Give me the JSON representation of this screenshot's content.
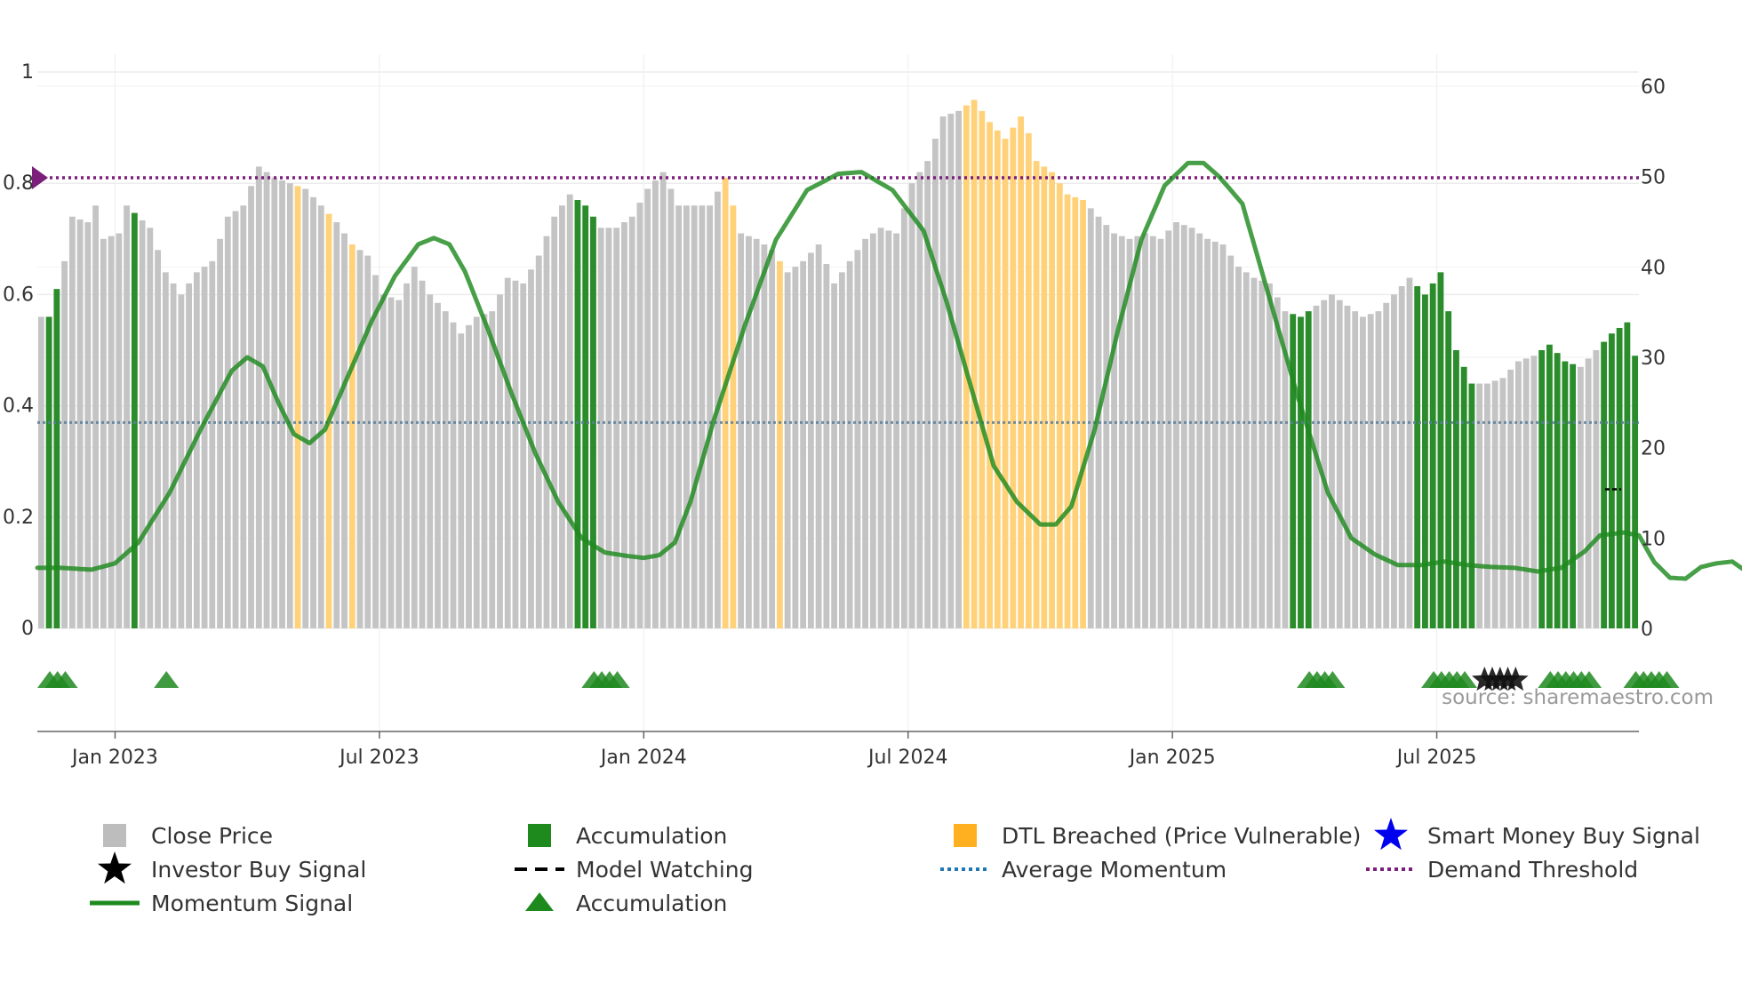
{
  "chart_data": {
    "type": "bar",
    "title": "",
    "source": "source: sharemaestro.com",
    "left_axis": {
      "ylim": [
        0,
        1
      ],
      "ticks": [
        "0",
        "0.2",
        "0.4",
        "0.6",
        "0.8",
        "1"
      ],
      "tick_values": [
        0,
        0.2,
        0.4,
        0.6,
        0.8,
        1.0
      ]
    },
    "right_axis": {
      "ylim": [
        0,
        60
      ],
      "ticks": [
        "0",
        "10",
        "20",
        "30",
        "40",
        "50",
        "60"
      ],
      "tick_values": [
        0,
        10,
        20,
        30,
        40,
        50,
        60
      ]
    },
    "x_ticks": [
      "Jan 2023",
      "Jul 2023",
      "Jan 2024",
      "Jul 2024",
      "Jan 2025",
      "Jul 2025"
    ],
    "x_tick_weeks": [
      10,
      44,
      78,
      112,
      146,
      180
    ],
    "bar_weeks": 206,
    "bar_keyframes": [
      [
        0,
        0.56
      ],
      [
        1,
        0.56
      ],
      [
        2,
        0.61
      ],
      [
        3,
        0.66
      ],
      [
        4,
        0.74
      ],
      [
        6,
        0.73
      ],
      [
        7,
        0.76
      ],
      [
        8,
        0.7
      ],
      [
        10,
        0.71
      ],
      [
        11,
        0.76
      ],
      [
        14,
        0.72
      ],
      [
        16,
        0.64
      ],
      [
        18,
        0.6
      ],
      [
        20,
        0.64
      ],
      [
        22,
        0.66
      ],
      [
        24,
        0.74
      ],
      [
        26,
        0.76
      ],
      [
        28,
        0.83
      ],
      [
        30,
        0.81
      ],
      [
        32,
        0.8
      ],
      [
        34,
        0.79
      ],
      [
        36,
        0.76
      ],
      [
        38,
        0.73
      ],
      [
        40,
        0.69
      ],
      [
        42,
        0.67
      ],
      [
        44,
        0.6
      ],
      [
        46,
        0.59
      ],
      [
        48,
        0.65
      ],
      [
        50,
        0.6
      ],
      [
        52,
        0.57
      ],
      [
        54,
        0.53
      ],
      [
        56,
        0.56
      ],
      [
        58,
        0.57
      ],
      [
        60,
        0.63
      ],
      [
        62,
        0.62
      ],
      [
        64,
        0.67
      ],
      [
        66,
        0.74
      ],
      [
        68,
        0.78
      ],
      [
        70,
        0.76
      ],
      [
        72,
        0.72
      ],
      [
        74,
        0.72
      ],
      [
        76,
        0.74
      ],
      [
        78,
        0.79
      ],
      [
        80,
        0.82
      ],
      [
        82,
        0.76
      ],
      [
        84,
        0.76
      ],
      [
        86,
        0.76
      ],
      [
        88,
        0.81
      ],
      [
        90,
        0.71
      ],
      [
        92,
        0.7
      ],
      [
        94,
        0.68
      ],
      [
        96,
        0.64
      ],
      [
        98,
        0.66
      ],
      [
        100,
        0.69
      ],
      [
        102,
        0.62
      ],
      [
        104,
        0.66
      ],
      [
        106,
        0.7
      ],
      [
        108,
        0.72
      ],
      [
        110,
        0.71
      ],
      [
        112,
        0.8
      ],
      [
        114,
        0.84
      ],
      [
        116,
        0.92
      ],
      [
        118,
        0.93
      ],
      [
        120,
        0.95
      ],
      [
        122,
        0.91
      ],
      [
        124,
        0.88
      ],
      [
        126,
        0.92
      ],
      [
        127,
        0.89
      ],
      [
        128,
        0.84
      ],
      [
        130,
        0.82
      ],
      [
        132,
        0.78
      ],
      [
        134,
        0.77
      ],
      [
        136,
        0.74
      ],
      [
        138,
        0.71
      ],
      [
        140,
        0.7
      ],
      [
        142,
        0.71
      ],
      [
        144,
        0.7
      ],
      [
        146,
        0.73
      ],
      [
        148,
        0.72
      ],
      [
        150,
        0.7
      ],
      [
        152,
        0.69
      ],
      [
        154,
        0.65
      ],
      [
        156,
        0.63
      ],
      [
        158,
        0.62
      ],
      [
        160,
        0.57
      ],
      [
        162,
        0.56
      ],
      [
        164,
        0.58
      ],
      [
        166,
        0.6
      ],
      [
        168,
        0.58
      ],
      [
        170,
        0.56
      ],
      [
        172,
        0.57
      ],
      [
        174,
        0.6
      ],
      [
        176,
        0.63
      ],
      [
        178,
        0.6
      ],
      [
        180,
        0.64
      ],
      [
        182,
        0.5
      ],
      [
        184,
        0.44
      ],
      [
        186,
        0.44
      ],
      [
        188,
        0.45
      ],
      [
        190,
        0.48
      ],
      [
        192,
        0.49
      ],
      [
        194,
        0.51
      ],
      [
        196,
        0.48
      ],
      [
        198,
        0.47
      ],
      [
        200,
        0.5
      ],
      [
        202,
        0.53
      ],
      [
        204,
        0.55
      ],
      [
        205,
        0.49
      ]
    ],
    "accumulation_bar_ranges": [
      [
        1,
        2
      ],
      [
        12,
        12
      ],
      [
        69,
        71
      ],
      [
        161,
        163
      ],
      [
        177,
        184
      ],
      [
        193,
        197
      ],
      [
        201,
        205
      ]
    ],
    "dtl_breached_bar_ranges": [
      [
        33,
        33
      ],
      [
        37,
        37
      ],
      [
        40,
        40
      ],
      [
        88,
        89
      ],
      [
        95,
        95
      ],
      [
        119,
        134
      ]
    ],
    "momentum_signal": {
      "axis": "right",
      "keyframes": [
        [
          0,
          6.7
        ],
        [
          3,
          6.7
        ],
        [
          7,
          6.5
        ],
        [
          10,
          7.2
        ],
        [
          13,
          9.5
        ],
        [
          17,
          15
        ],
        [
          21,
          22
        ],
        [
          25,
          28.5
        ],
        [
          27,
          30
        ],
        [
          29,
          29
        ],
        [
          31,
          25
        ],
        [
          33,
          21.5
        ],
        [
          35,
          20.5
        ],
        [
          37,
          22
        ],
        [
          40,
          28
        ],
        [
          43,
          34
        ],
        [
          46,
          39
        ],
        [
          49,
          42.5
        ],
        [
          51,
          43.2
        ],
        [
          53,
          42.5
        ],
        [
          55,
          39.5
        ],
        [
          58,
          33
        ],
        [
          61,
          26
        ],
        [
          64,
          19.5
        ],
        [
          67,
          14
        ],
        [
          70,
          10
        ],
        [
          73,
          8.4
        ],
        [
          76,
          8.0
        ],
        [
          78,
          7.8
        ],
        [
          80,
          8.1
        ],
        [
          82,
          9.5
        ],
        [
          84,
          14
        ],
        [
          87,
          23
        ],
        [
          91,
          33.5
        ],
        [
          95,
          43
        ],
        [
          99,
          48.5
        ],
        [
          103,
          50.3
        ],
        [
          106,
          50.5
        ],
        [
          110,
          48.5
        ],
        [
          114,
          44
        ],
        [
          117,
          36
        ],
        [
          120,
          27
        ],
        [
          123,
          18
        ],
        [
          126,
          14
        ],
        [
          129,
          11.5
        ],
        [
          131,
          11.5
        ],
        [
          133,
          13.5
        ],
        [
          136,
          22
        ],
        [
          139,
          33
        ],
        [
          142,
          43
        ],
        [
          145,
          49
        ],
        [
          148,
          51.5
        ],
        [
          150,
          51.5
        ],
        [
          152,
          50
        ],
        [
          155,
          47
        ],
        [
          158,
          38
        ],
        [
          162,
          26
        ],
        [
          166,
          15
        ],
        [
          169,
          10
        ],
        [
          172,
          8.2
        ],
        [
          175,
          7.0
        ],
        [
          178,
          7.0
        ],
        [
          181,
          7.4
        ],
        [
          184,
          7.0
        ],
        [
          187,
          6.8
        ],
        [
          190,
          6.7
        ],
        [
          193,
          6.3
        ],
        [
          196,
          6.7
        ],
        [
          199,
          8.5
        ],
        [
          201,
          10.3
        ],
        [
          204,
          10.6
        ],
        [
          206,
          10.3
        ],
        [
          208,
          7.3
        ],
        [
          210,
          5.6
        ],
        [
          212,
          5.5
        ],
        [
          214,
          6.8
        ],
        [
          216,
          7.2
        ],
        [
          218,
          7.4
        ],
        [
          220,
          6.2
        ],
        [
          222,
          6.4
        ],
        [
          224,
          8.2
        ],
        [
          227,
          9.2
        ]
      ]
    },
    "demand_threshold": {
      "axis": "left",
      "value": 0.81
    },
    "average_momentum": {
      "axis": "left",
      "value": 0.37
    },
    "model_watching_value": 0.25,
    "accumulation_triangles": [
      0,
      1,
      2,
      15,
      70,
      71,
      72,
      73,
      162,
      163,
      164,
      165,
      178,
      179,
      180,
      181,
      182,
      193,
      194,
      195,
      196,
      197,
      198,
      204,
      205,
      206,
      207,
      208
    ],
    "investor_buy_stars": [
      185,
      186,
      187,
      188,
      189
    ],
    "legend": [
      {
        "label": "Close Price",
        "marker": "square",
        "color": "#bdbdbd"
      },
      {
        "label": "Accumulation",
        "marker": "square",
        "color": "#1e8a1e"
      },
      {
        "label": "DTL Breached (Price Vulnerable)",
        "marker": "square",
        "color": "#ffb020"
      },
      {
        "label": "Smart Money Buy Signal",
        "marker": "star",
        "color": "#0000ee"
      },
      {
        "label": "Investor Buy Signal",
        "marker": "star",
        "color": "#000000"
      },
      {
        "label": "Model Watching",
        "marker": "dash",
        "color": "#000000"
      },
      {
        "label": "Average Momentum",
        "marker": "dot",
        "color": "#1f77b4"
      },
      {
        "label": "Demand Threshold",
        "marker": "dot",
        "color": "#7b1f7b"
      },
      {
        "label": "Momentum Signal",
        "marker": "line",
        "color": "#1e8a1e"
      },
      {
        "label": "Accumulation",
        "marker": "triangle",
        "color": "#1e8a1e"
      }
    ]
  }
}
